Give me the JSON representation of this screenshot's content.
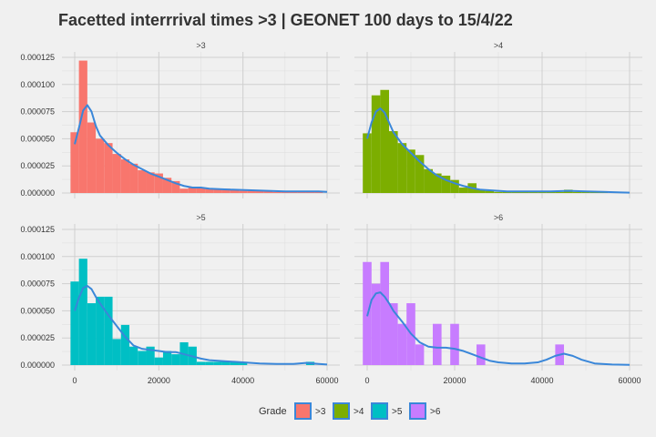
{
  "title": "Facetted interrrival times >3 | GEONET 100 days to 15/4/22",
  "chart_data": {
    "type": "bar",
    "title": "Facetted interrrival times >3 | GEONET 100 days to 15/4/22",
    "xlabel": "",
    "ylabel": "",
    "xlim": [
      0,
      60000
    ],
    "ylim": [
      0,
      0.000125
    ],
    "x_ticks": [
      0,
      20000,
      40000,
      60000
    ],
    "x_tick_labels": [
      "0",
      "20000",
      "40000",
      "60000"
    ],
    "y_ticks": [
      0,
      2.5e-05,
      5e-05,
      7.5e-05,
      0.0001,
      0.000125
    ],
    "y_tick_labels": [
      "0.000000",
      "0.000025",
      "0.000050",
      "0.000075",
      "0.000100",
      "0.000125"
    ],
    "bin_width": 2000,
    "grid": true,
    "density_line_color": "#3a87d9",
    "facets": [
      {
        "label": ">3",
        "fill": "#f8766d",
        "bins": [
          {
            "x": 0,
            "y": 5.6e-05
          },
          {
            "x": 2000,
            "y": 0.000122
          },
          {
            "x": 4000,
            "y": 6.5e-05
          },
          {
            "x": 6000,
            "y": 5e-05
          },
          {
            "x": 8000,
            "y": 4.6e-05
          },
          {
            "x": 10000,
            "y": 3.6e-05
          },
          {
            "x": 12000,
            "y": 3.1e-05
          },
          {
            "x": 14000,
            "y": 2.7e-05
          },
          {
            "x": 16000,
            "y": 2.1e-05
          },
          {
            "x": 18000,
            "y": 1.9e-05
          },
          {
            "x": 20000,
            "y": 1.8e-05
          },
          {
            "x": 22000,
            "y": 1.4e-05
          },
          {
            "x": 24000,
            "y": 1.1e-05
          },
          {
            "x": 26000,
            "y": 4e-06
          },
          {
            "x": 28000,
            "y": 5e-06
          },
          {
            "x": 30000,
            "y": 5e-06
          },
          {
            "x": 32000,
            "y": 4e-06
          },
          {
            "x": 34000,
            "y": 4e-06
          },
          {
            "x": 36000,
            "y": 4e-06
          },
          {
            "x": 38000,
            "y": 3e-06
          },
          {
            "x": 40000,
            "y": 2e-06
          },
          {
            "x": 42000,
            "y": 2e-06
          },
          {
            "x": 44000,
            "y": 2e-06
          },
          {
            "x": 46000,
            "y": 2e-06
          },
          {
            "x": 48000,
            "y": 1e-06
          },
          {
            "x": 50000,
            "y": 1e-06
          },
          {
            "x": 52000,
            "y": 1e-06
          },
          {
            "x": 54000,
            "y": 2e-06
          },
          {
            "x": 56000,
            "y": 1e-06
          },
          {
            "x": 58000,
            "y": 2e-06
          }
        ],
        "density": [
          [
            0,
            4.5e-05
          ],
          [
            1000,
            6e-05
          ],
          [
            2000,
            7.6e-05
          ],
          [
            3000,
            8.1e-05
          ],
          [
            4000,
            7.5e-05
          ],
          [
            5000,
            6.2e-05
          ],
          [
            6000,
            5.3e-05
          ],
          [
            8000,
            4.4e-05
          ],
          [
            10000,
            3.7e-05
          ],
          [
            12000,
            3.1e-05
          ],
          [
            14000,
            2.6e-05
          ],
          [
            16000,
            2.2e-05
          ],
          [
            18000,
            1.8e-05
          ],
          [
            20000,
            1.5e-05
          ],
          [
            22000,
            1.2e-05
          ],
          [
            24000,
            9e-06
          ],
          [
            26000,
            6.5e-06
          ],
          [
            28000,
            5e-06
          ],
          [
            30000,
            5e-06
          ],
          [
            32000,
            4e-06
          ],
          [
            35000,
            3.5e-06
          ],
          [
            38000,
            3e-06
          ],
          [
            42000,
            2.5e-06
          ],
          [
            46000,
            2e-06
          ],
          [
            50000,
            1.5e-06
          ],
          [
            54000,
            1.5e-06
          ],
          [
            58000,
            1.5e-06
          ],
          [
            60000,
            1e-06
          ]
        ]
      },
      {
        "label": ">4",
        "fill": "#7cae00",
        "bins": [
          {
            "x": 0,
            "y": 5.5e-05
          },
          {
            "x": 2000,
            "y": 9e-05
          },
          {
            "x": 4000,
            "y": 9.5e-05
          },
          {
            "x": 6000,
            "y": 5.7e-05
          },
          {
            "x": 8000,
            "y": 4.6e-05
          },
          {
            "x": 10000,
            "y": 4e-05
          },
          {
            "x": 12000,
            "y": 3.5e-05
          },
          {
            "x": 14000,
            "y": 2.2e-05
          },
          {
            "x": 16000,
            "y": 1.8e-05
          },
          {
            "x": 18000,
            "y": 1.6e-05
          },
          {
            "x": 20000,
            "y": 1.2e-05
          },
          {
            "x": 22000,
            "y": 5e-06
          },
          {
            "x": 24000,
            "y": 9e-06
          },
          {
            "x": 26000,
            "y": 3e-06
          },
          {
            "x": 28000,
            "y": 2e-06
          },
          {
            "x": 30000,
            "y": 1e-06
          },
          {
            "x": 32000,
            "y": 1e-06
          },
          {
            "x": 34000,
            "y": 1e-06
          },
          {
            "x": 36000,
            "y": 1e-06
          },
          {
            "x": 38000,
            "y": 1e-06
          },
          {
            "x": 40000,
            "y": 1e-06
          },
          {
            "x": 42000,
            "y": 1e-06
          },
          {
            "x": 44000,
            "y": 1e-06
          },
          {
            "x": 46000,
            "y": 3e-06
          },
          {
            "x": 48000,
            "y": 1e-06
          },
          {
            "x": 50000,
            "y": 1e-06
          },
          {
            "x": 52000,
            "y": 1e-06
          },
          {
            "x": 54000,
            "y": 1e-06
          }
        ],
        "density": [
          [
            0,
            5e-05
          ],
          [
            1000,
            6.5e-05
          ],
          [
            2000,
            7.5e-05
          ],
          [
            3000,
            7.8e-05
          ],
          [
            4000,
            7.4e-05
          ],
          [
            5000,
            6.5e-05
          ],
          [
            6000,
            5.6e-05
          ],
          [
            8000,
            4.5e-05
          ],
          [
            10000,
            3.7e-05
          ],
          [
            12000,
            2.9e-05
          ],
          [
            14000,
            2.2e-05
          ],
          [
            16000,
            1.6e-05
          ],
          [
            18000,
            1.2e-05
          ],
          [
            20000,
            9e-06
          ],
          [
            22000,
            6.5e-06
          ],
          [
            24000,
            4.5e-06
          ],
          [
            26000,
            3e-06
          ],
          [
            28000,
            2.5e-06
          ],
          [
            32000,
            1.5e-06
          ],
          [
            36000,
            1.5e-06
          ],
          [
            42000,
            1.5e-06
          ],
          [
            46000,
            2e-06
          ],
          [
            50000,
            1.5e-06
          ],
          [
            54000,
            1e-06
          ],
          [
            58000,
            5e-07
          ],
          [
            60000,
            3e-07
          ]
        ]
      },
      {
        "label": ">5",
        "fill": "#00bfc4",
        "bins": [
          {
            "x": 0,
            "y": 7.7e-05
          },
          {
            "x": 2000,
            "y": 9.8e-05
          },
          {
            "x": 4000,
            "y": 5.7e-05
          },
          {
            "x": 6000,
            "y": 6.3e-05
          },
          {
            "x": 8000,
            "y": 6.3e-05
          },
          {
            "x": 10000,
            "y": 2.4e-05
          },
          {
            "x": 12000,
            "y": 3.7e-05
          },
          {
            "x": 14000,
            "y": 1.7e-05
          },
          {
            "x": 16000,
            "y": 1.3e-05
          },
          {
            "x": 18000,
            "y": 1.7e-05
          },
          {
            "x": 20000,
            "y": 7e-06
          },
          {
            "x": 22000,
            "y": 1.3e-05
          },
          {
            "x": 24000,
            "y": 1e-05
          },
          {
            "x": 26000,
            "y": 2.1e-05
          },
          {
            "x": 28000,
            "y": 1.7e-05
          },
          {
            "x": 30000,
            "y": 3e-06
          },
          {
            "x": 32000,
            "y": 3e-06
          },
          {
            "x": 34000,
            "y": 3e-06
          },
          {
            "x": 36000,
            "y": 3e-06
          },
          {
            "x": 38000,
            "y": 3e-06
          },
          {
            "x": 40000,
            "y": 3e-06
          },
          {
            "x": 56000,
            "y": 3e-06
          }
        ],
        "density": [
          [
            0,
            5e-05
          ],
          [
            1000,
            6.2e-05
          ],
          [
            2000,
            7.1e-05
          ],
          [
            3000,
            7.3e-05
          ],
          [
            4000,
            7e-05
          ],
          [
            5000,
            6.3e-05
          ],
          [
            6000,
            5.7e-05
          ],
          [
            8000,
            4.6e-05
          ],
          [
            10000,
            3.6e-05
          ],
          [
            12000,
            2.6e-05
          ],
          [
            14000,
            1.8e-05
          ],
          [
            16000,
            1.5e-05
          ],
          [
            18000,
            1.4e-05
          ],
          [
            20000,
            1.3e-05
          ],
          [
            22000,
            1.2e-05
          ],
          [
            24000,
            1.2e-05
          ],
          [
            26000,
            1e-05
          ],
          [
            28000,
            8e-06
          ],
          [
            30000,
            6e-06
          ],
          [
            32000,
            4.5e-06
          ],
          [
            34000,
            4e-06
          ],
          [
            36000,
            3.5e-06
          ],
          [
            38000,
            3e-06
          ],
          [
            40000,
            2.5e-06
          ],
          [
            44000,
            1.5e-06
          ],
          [
            48000,
            1e-06
          ],
          [
            52000,
            1e-06
          ],
          [
            55000,
            2e-06
          ],
          [
            58000,
            1e-06
          ],
          [
            60000,
            5e-07
          ]
        ]
      },
      {
        "label": ">6",
        "fill": "#c77cff",
        "bins": [
          {
            "x": 0,
            "y": 9.5e-05
          },
          {
            "x": 2000,
            "y": 7.5e-05
          },
          {
            "x": 4000,
            "y": 9.5e-05
          },
          {
            "x": 6000,
            "y": 5.7e-05
          },
          {
            "x": 8000,
            "y": 3.8e-05
          },
          {
            "x": 10000,
            "y": 5.7e-05
          },
          {
            "x": 12000,
            "y": 1.9e-05
          },
          {
            "x": 16000,
            "y": 3.8e-05
          },
          {
            "x": 20000,
            "y": 3.8e-05
          },
          {
            "x": 26000,
            "y": 1.9e-05
          },
          {
            "x": 44000,
            "y": 1.9e-05
          }
        ],
        "density": [
          [
            0,
            4.5e-05
          ],
          [
            1000,
            6e-05
          ],
          [
            2000,
            6.6e-05
          ],
          [
            3000,
            6.7e-05
          ],
          [
            4000,
            6.3e-05
          ],
          [
            5000,
            5.7e-05
          ],
          [
            6000,
            5e-05
          ],
          [
            8000,
            4e-05
          ],
          [
            10000,
            2.9e-05
          ],
          [
            12000,
            2.1e-05
          ],
          [
            14000,
            1.7e-05
          ],
          [
            16000,
            1.6e-05
          ],
          [
            18000,
            1.6e-05
          ],
          [
            20000,
            1.5e-05
          ],
          [
            22000,
            1.3e-05
          ],
          [
            24000,
            1e-05
          ],
          [
            26000,
            7e-06
          ],
          [
            28000,
            4e-06
          ],
          [
            30000,
            2.5e-06
          ],
          [
            33000,
            1.5e-06
          ],
          [
            36000,
            1.5e-06
          ],
          [
            39000,
            2.5e-06
          ],
          [
            41000,
            5e-06
          ],
          [
            43000,
            8.5e-06
          ],
          [
            45000,
            1.05e-05
          ],
          [
            47000,
            8.5e-06
          ],
          [
            49000,
            5e-06
          ],
          [
            52000,
            1.5e-06
          ],
          [
            56000,
            5e-07
          ],
          [
            60000,
            2e-07
          ]
        ]
      }
    ],
    "legend": {
      "title": "Grade",
      "position": "bottom",
      "items": [
        {
          "label": ">3",
          "color": "#f8766d"
        },
        {
          "label": ">4",
          "color": "#7cae00"
        },
        {
          "label": ">5",
          "color": "#00bfc4"
        },
        {
          "label": ">6",
          "color": "#c77cff"
        }
      ]
    }
  }
}
